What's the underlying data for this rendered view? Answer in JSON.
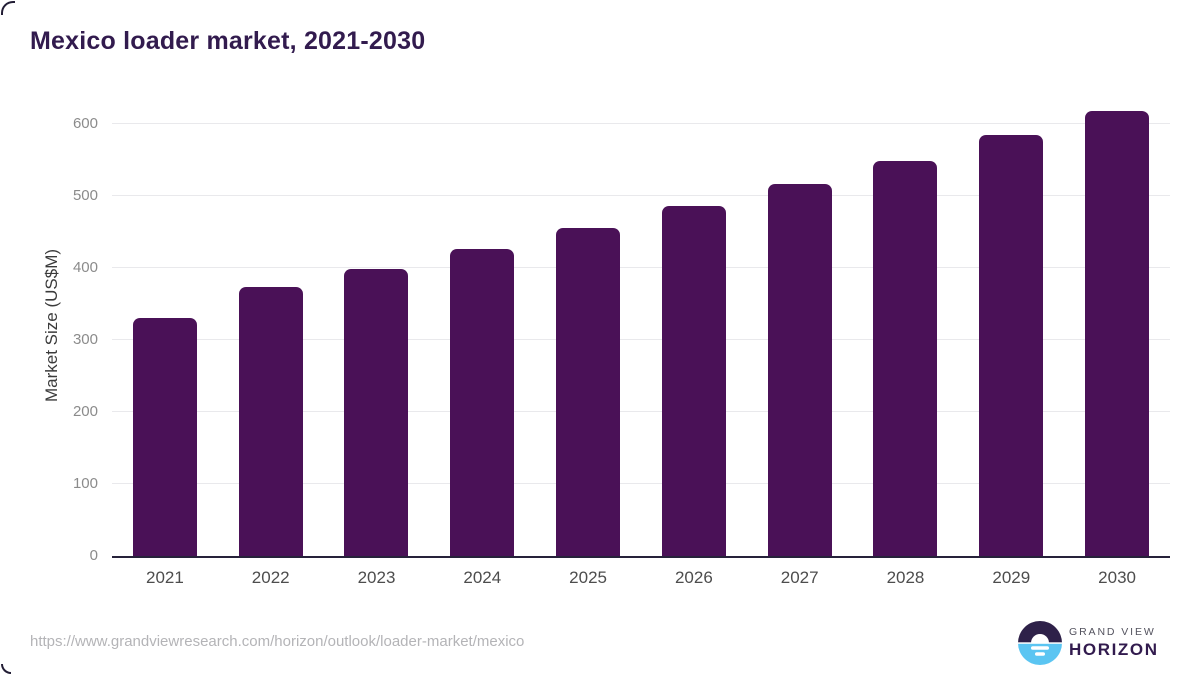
{
  "chart_data": {
    "type": "bar",
    "title": "Mexico loader market, 2021-2030",
    "xlabel": "",
    "ylabel": "Market Size (US$M)",
    "categories": [
      "2021",
      "2022",
      "2023",
      "2024",
      "2025",
      "2026",
      "2027",
      "2028",
      "2029",
      "2030"
    ],
    "values": [
      330,
      374,
      399,
      426,
      456,
      486,
      516,
      549,
      584,
      618
    ],
    "yticks": [
      0,
      100,
      200,
      300,
      400,
      500,
      600
    ],
    "ylim": [
      0,
      643
    ],
    "grid": "horizontal-only",
    "legend": "none",
    "bar_color": "#4a1157"
  },
  "footer": {
    "source_url": "https://www.grandviewresearch.com/horizon/outlook/loader-market/mexico"
  },
  "logo": {
    "line1": "GRAND VIEW",
    "line2": "HORIZON",
    "icon": "horizon-sun-circle-icon",
    "dark_color": "#2e2149",
    "blue_color": "#5bc5f2"
  },
  "colors": {
    "title": "#321b4e",
    "bar": "#4a1157",
    "gridline": "#e9e9ec",
    "axis_line": "#26223a",
    "y_tick_text": "#8b8b8b",
    "x_tick_text": "#4d4d4d",
    "url_text": "#b4b4b7"
  }
}
